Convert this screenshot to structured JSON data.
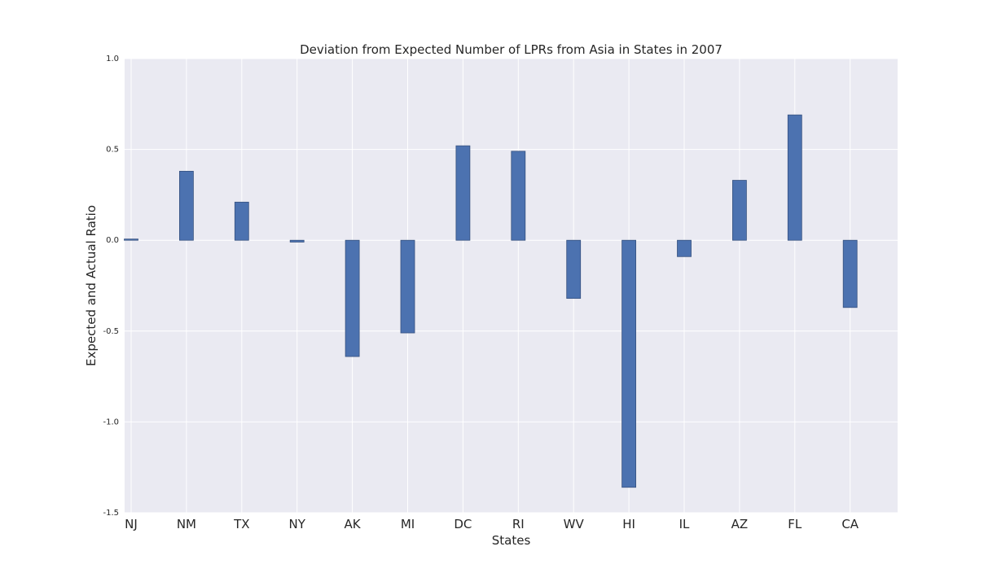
{
  "chart_data": {
    "type": "bar",
    "title": "Deviation from Expected Number of LPRs from Asia in States in 2007",
    "xlabel": "States",
    "ylabel": "Expected and Actual Ratio",
    "categories": [
      "NJ",
      "NM",
      "TX",
      "NY",
      "AK",
      "MI",
      "DC",
      "RI",
      "WV",
      "HI",
      "IL",
      "AZ",
      "FL",
      "CA"
    ],
    "values": [
      0.003,
      0.38,
      0.21,
      -0.01,
      -0.64,
      -0.51,
      0.52,
      0.49,
      -0.32,
      -1.36,
      -0.09,
      0.33,
      0.69,
      -0.37
    ],
    "ylim": [
      -1.5,
      1.0
    ],
    "yticks": [
      "1.0",
      "0.5",
      "0.0",
      "-0.5",
      "-1.0",
      "-1.5"
    ],
    "grid": true,
    "legend": "none",
    "colors": {
      "bar": "#4c72b0",
      "bar_edge": "#36517f",
      "plot_background": "#eaeaf2",
      "grid": "#ffffff"
    }
  }
}
